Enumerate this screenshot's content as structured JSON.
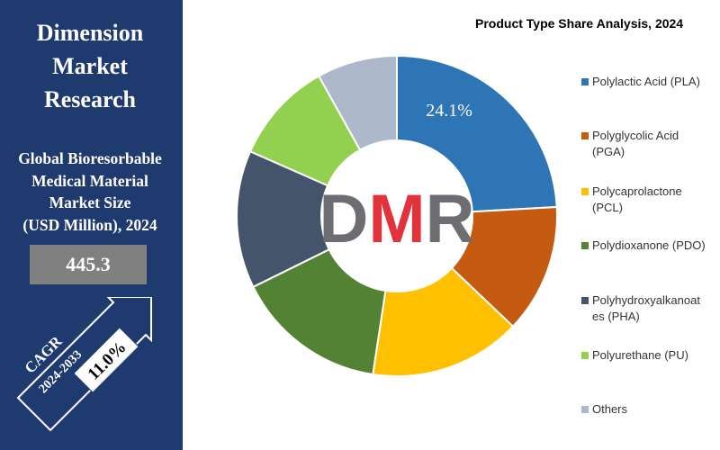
{
  "brand": {
    "line1": "Dimension",
    "line2": "Market",
    "line3": "Research"
  },
  "market": {
    "title_lines": [
      "Global Bioresorbable",
      "Medical Material",
      "Market Size",
      "(USD Million), 2024"
    ],
    "value": "445.3"
  },
  "cagr": {
    "label": "CAGR",
    "years": "2024-2033",
    "value": "11.0%"
  },
  "logo_text": "DMR",
  "chart_data": {
    "type": "pie",
    "title": "Product Type Share Analysis, 2024",
    "donut": true,
    "legend_position": "right",
    "slices": [
      {
        "label": "Polylactic Acid (PLA)",
        "value": 24.1,
        "color": "#2e75b6",
        "data_label": "24.1%"
      },
      {
        "label": "Polyglycolic Acid (PGA)",
        "value": 13.0,
        "color": "#c55a11"
      },
      {
        "label": "Polycaprolactone (PCL)",
        "value": 15.3,
        "color": "#ffc000"
      },
      {
        "label": "Polydioxanone (PDO)",
        "value": 15.3,
        "color": "#548235"
      },
      {
        "label": "Polyhydroxyalkanoates (PHA)",
        "value": 13.9,
        "color": "#44546a"
      },
      {
        "label": "Polyurethane (PU)",
        "value": 10.3,
        "color": "#92d050"
      },
      {
        "label": "Others",
        "value": 8.1,
        "color": "#adb9ca"
      }
    ]
  }
}
